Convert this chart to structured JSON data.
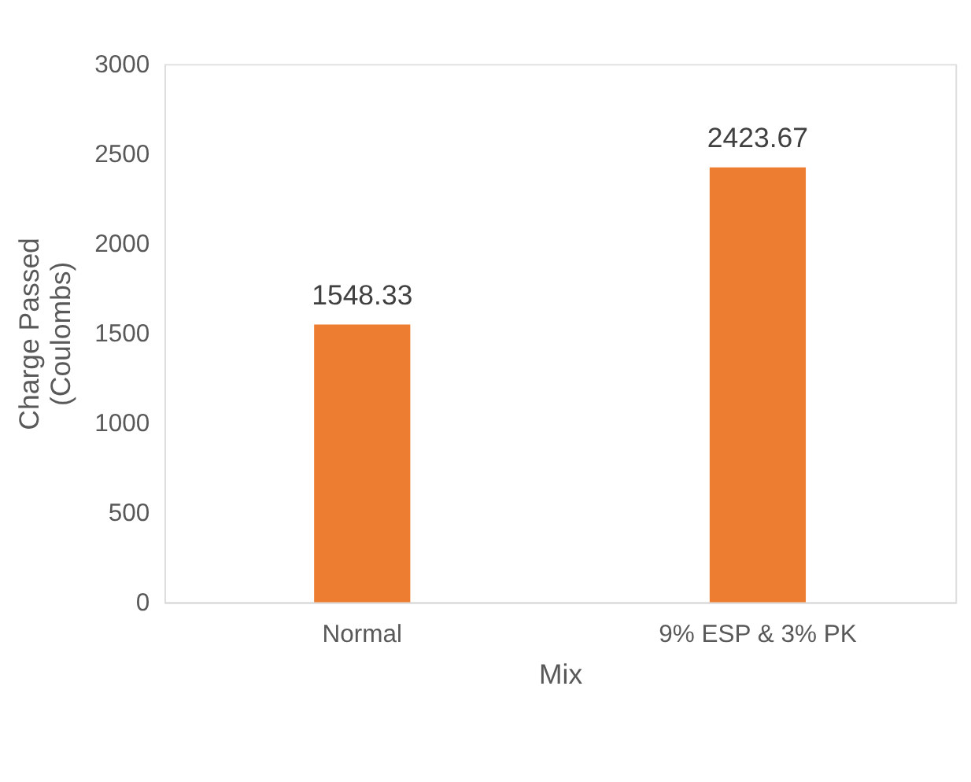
{
  "chart_data": {
    "type": "bar",
    "categories": [
      "Normal",
      "9% ESP & 3% PK"
    ],
    "values": [
      1548.33,
      2423.67
    ],
    "color": "#ed7d31",
    "xlabel": "Mix",
    "ylabel": "Charge Passed\n(Coulombs)",
    "ylim": [
      0,
      3000
    ],
    "yticks": [
      0,
      500,
      1000,
      1500,
      2000,
      2500,
      3000
    ],
    "grid": false,
    "data_labels": true
  }
}
